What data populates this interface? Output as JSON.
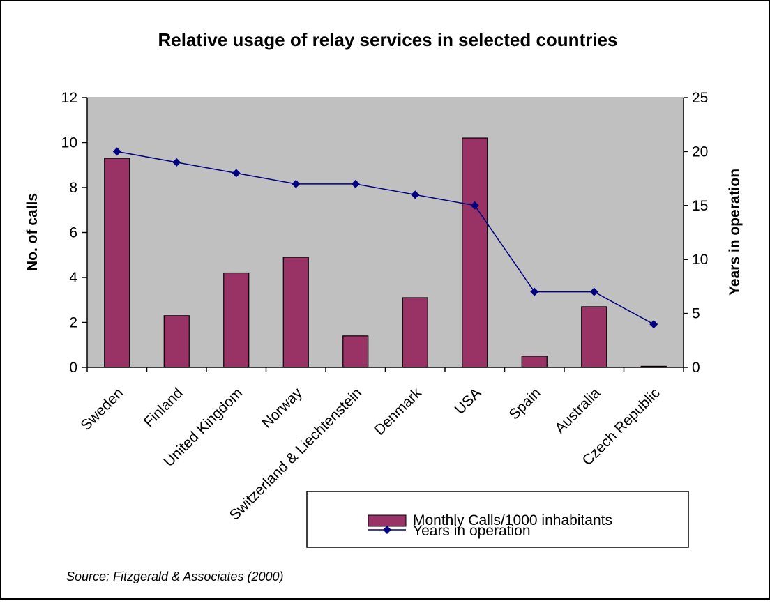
{
  "chart_data": {
    "type": "bar",
    "title": "Relative usage of relay services in selected countries",
    "ylabel": "No. of calls",
    "y2label": "Years in operation",
    "ylim": [
      0,
      12
    ],
    "y2lim": [
      0,
      25
    ],
    "yticks": [
      "0",
      "2",
      "4",
      "6",
      "8",
      "10",
      "12"
    ],
    "y2ticks": [
      "0",
      "5",
      "10",
      "15",
      "20",
      "25"
    ],
    "categories": [
      "Sweden",
      "Finland",
      "United Kingdom",
      "Norway",
      "Switzerland & Liechtenstein",
      "Denmark",
      "USA",
      "Spain",
      "Australia",
      "Czech Republic"
    ],
    "series": [
      {
        "name": "Monthly Calls/1000 inhabitants",
        "kind": "bar",
        "axis": "left",
        "color": "#993366",
        "values": [
          9.3,
          2.3,
          4.2,
          4.9,
          1.4,
          3.1,
          10.2,
          0.5,
          2.7,
          0.05
        ]
      },
      {
        "name": "Years in operation",
        "kind": "line",
        "axis": "right",
        "color": "#000080",
        "values": [
          20,
          19,
          18,
          17,
          17,
          16,
          15,
          7,
          7,
          4
        ]
      }
    ],
    "plot_background": "#c0c0c0",
    "grid": false,
    "legend_position": "bottom-right",
    "source": "Source: Fitzgerald & Associates (2000)"
  }
}
